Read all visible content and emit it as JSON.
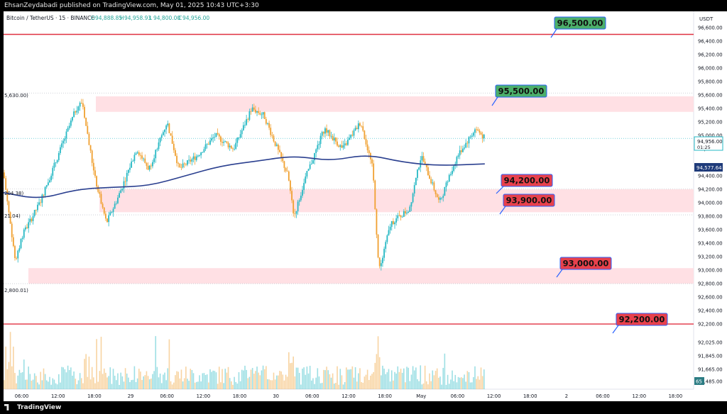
{
  "header": {
    "published": "EhsanZeydabadi published on TradingView.com, May 01, 2025 10:43 UTC+3:30"
  },
  "symbol": {
    "name": "Bitcoin / TetherUS · 15 · BINANCE",
    "ohlc": {
      "o_label": "O",
      "o": "94,888.85",
      "h_label": "H",
      "h": "94,958.93",
      "l_label": "L",
      "l": "94,800.00",
      "c_label": "C",
      "c": "94,956.00"
    }
  },
  "price_axis": {
    "currency": "USDT",
    "ticks": [
      "96,600.00",
      "96,400.00",
      "96,200.00",
      "96,000.00",
      "95,800.00",
      "95,600.00",
      "95,400.00",
      "95,200.00",
      "95,000.00",
      "94,800.00",
      "94,400.00",
      "94,200.00",
      "94,000.00",
      "93,800.00",
      "93,600.00",
      "93,400.00",
      "93,200.00",
      "93,000.00",
      "92,800.00",
      "92,600.00",
      "92,400.00",
      "92,200.00",
      "92,025.00",
      "91,845.00",
      "91,665.00",
      "91,485.00"
    ],
    "last_price_label": "94,956.00",
    "countdown_label": "01:25",
    "ma_label": "94,577.64",
    "volume_label": "65"
  },
  "time_axis": {
    "ticks": [
      "06:00",
      "12:00",
      "18:00",
      "29",
      "06:00",
      "12:00",
      "18:00",
      "30",
      "06:00",
      "12:00",
      "18:00",
      "May",
      "06:00",
      "12:00",
      "18:00",
      "2",
      "06:00",
      "12:00",
      "18:00"
    ]
  },
  "left_labels": {
    "l1": "5,630.00)",
    "l2": "204.38)",
    "l3": "21.04)",
    "l4": "2,800.01)"
  },
  "annotations": [
    {
      "text": "96,500.00",
      "style": "green"
    },
    {
      "text": "95,500.00",
      "style": "green"
    },
    {
      "text": "94,200.00",
      "style": "red"
    },
    {
      "text": "93,900.00",
      "style": "red"
    },
    {
      "text": "93,000.00",
      "style": "red"
    },
    {
      "text": "92,200.00",
      "style": "red"
    }
  ],
  "branding": {
    "logo_text": "TradingView"
  },
  "colors": {
    "background": "#000000",
    "bull": "#26b8c4",
    "bear": "#f0a030",
    "ma": "#2a3f8f",
    "zone": "#ffe0e4",
    "line_red": "#e03040",
    "label_green": "#4caf6a",
    "label_red": "#e8414c"
  },
  "chart_data": {
    "type": "candlestick",
    "title": "Bitcoin / TetherUS · 15 · BINANCE",
    "ylim": [
      91485,
      96800
    ],
    "x_range": [
      "2025-04-28 03:00",
      "2025-05-02 21:00"
    ],
    "interval_minutes": 15,
    "horizontal_lines": [
      96500,
      92200
    ],
    "dotted_levels": [
      95630,
      94204.38,
      93821.04,
      92800.01
    ],
    "zones": [
      {
        "from": 95350,
        "to": 95580
      },
      {
        "from": 93860,
        "to": 94200
      },
      {
        "from": 92800,
        "to": 93030
      }
    ],
    "price_path": [
      {
        "t": "2025-04-28 03:00",
        "p": 94450
      },
      {
        "t": "2025-04-28 05:00",
        "p": 93100
      },
      {
        "t": "2025-04-28 06:00",
        "p": 93500
      },
      {
        "t": "2025-04-28 09:00",
        "p": 94000
      },
      {
        "t": "2025-04-28 12:00",
        "p": 94700
      },
      {
        "t": "2025-04-28 15:00",
        "p": 95400
      },
      {
        "t": "2025-04-28 16:00",
        "p": 95500
      },
      {
        "t": "2025-04-28 18:00",
        "p": 94400
      },
      {
        "t": "2025-04-28 20:00",
        "p": 93700
      },
      {
        "t": "2025-04-28 22:00",
        "p": 94100
      },
      {
        "t": "2025-04-29 01:00",
        "p": 94800
      },
      {
        "t": "2025-04-29 03:00",
        "p": 94500
      },
      {
        "t": "2025-04-29 06:00",
        "p": 95200
      },
      {
        "t": "2025-04-29 08:00",
        "p": 94500
      },
      {
        "t": "2025-04-29 11:00",
        "p": 94700
      },
      {
        "t": "2025-04-29 14:00",
        "p": 95000
      },
      {
        "t": "2025-04-29 17:00",
        "p": 94800
      },
      {
        "t": "2025-04-29 20:00",
        "p": 95400
      },
      {
        "t": "2025-04-29 22:00",
        "p": 95300
      },
      {
        "t": "2025-04-30 02:00",
        "p": 94400
      },
      {
        "t": "2025-04-30 03:00",
        "p": 93800
      },
      {
        "t": "2025-04-30 05:00",
        "p": 94400
      },
      {
        "t": "2025-04-30 08:00",
        "p": 95100
      },
      {
        "t": "2025-04-30 11:00",
        "p": 94800
      },
      {
        "t": "2025-04-30 14:00",
        "p": 95200
      },
      {
        "t": "2025-04-30 16:00",
        "p": 94500
      },
      {
        "t": "2025-04-30 17:00",
        "p": 93000
      },
      {
        "t": "2025-04-30 19:00",
        "p": 93700
      },
      {
        "t": "2025-04-30 22:00",
        "p": 93900
      },
      {
        "t": "2025-05-01 00:00",
        "p": 94700
      },
      {
        "t": "2025-05-01 03:00",
        "p": 94000
      },
      {
        "t": "2025-05-01 06:00",
        "p": 94700
      },
      {
        "t": "2025-05-01 09:00",
        "p": 95100
      },
      {
        "t": "2025-05-01 10:30",
        "p": 94956
      }
    ],
    "moving_average": [
      {
        "t": "2025-04-28 03:00",
        "p": 94150
      },
      {
        "t": "2025-04-28 09:00",
        "p": 94050
      },
      {
        "t": "2025-04-28 15:00",
        "p": 94200
      },
      {
        "t": "2025-04-28 21:00",
        "p": 94230
      },
      {
        "t": "2025-04-29 03:00",
        "p": 94250
      },
      {
        "t": "2025-04-29 09:00",
        "p": 94400
      },
      {
        "t": "2025-04-29 15:00",
        "p": 94550
      },
      {
        "t": "2025-04-29 21:00",
        "p": 94620
      },
      {
        "t": "2025-04-30 03:00",
        "p": 94700
      },
      {
        "t": "2025-04-30 09:00",
        "p": 94620
      },
      {
        "t": "2025-04-30 15:00",
        "p": 94720
      },
      {
        "t": "2025-04-30 21:00",
        "p": 94600
      },
      {
        "t": "2025-05-01 03:00",
        "p": 94550
      },
      {
        "t": "2025-05-01 10:30",
        "p": 94577.64
      }
    ]
  }
}
